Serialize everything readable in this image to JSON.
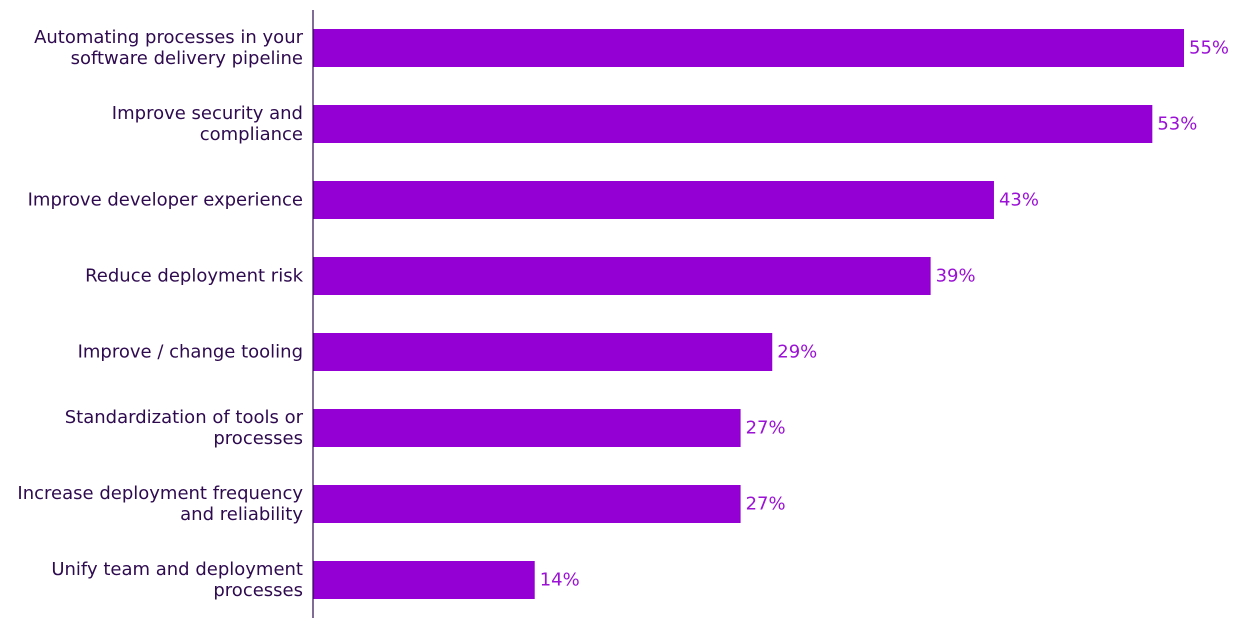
{
  "chart_data": {
    "type": "bar",
    "orientation": "horizontal",
    "categories": [
      [
        "Automating processes in your",
        "software delivery pipeline"
      ],
      [
        "Improve security and",
        "compliance"
      ],
      [
        "Improve developer experience"
      ],
      [
        "Reduce deployment risk"
      ],
      [
        "Improve / change tooling"
      ],
      [
        "Standardization of tools or",
        "processes"
      ],
      [
        "Increase deployment frequency",
        "and reliability"
      ],
      [
        "Unify team and deployment",
        "processes"
      ]
    ],
    "values": [
      55,
      53,
      43,
      39,
      29,
      27,
      27,
      14
    ],
    "value_labels": [
      "55%",
      "53%",
      "43%",
      "39%",
      "29%",
      "27%",
      "27%",
      "14%"
    ],
    "xlim": [
      0,
      55
    ],
    "title": "",
    "xlabel": "",
    "ylabel": "",
    "grid": false,
    "legend": "none"
  },
  "colors": {
    "bar": "#9400d3",
    "value_label": "#9b11d6",
    "category_label": "#2e0a4f",
    "axis_line": "#2e0a4f"
  }
}
